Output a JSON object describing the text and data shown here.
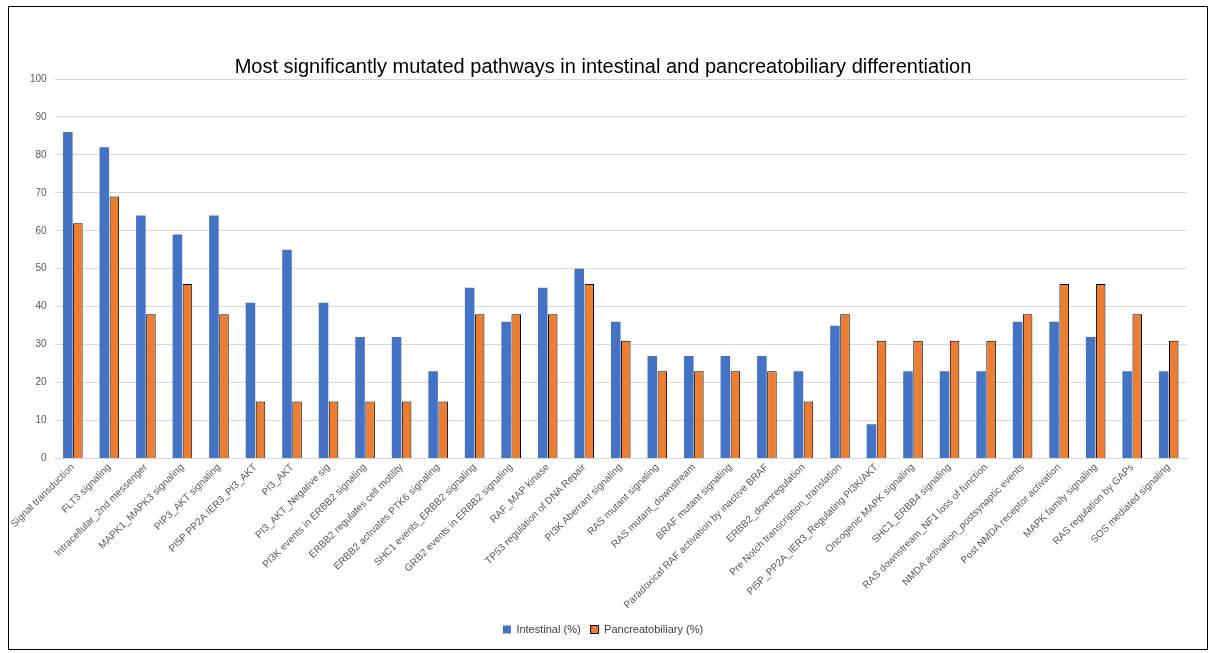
{
  "chart_data": {
    "type": "bar",
    "title": "Most significantly mutated pathways in intestinal and pancreatobiliary differentiation",
    "categories": [
      "Signal transduction",
      "FLT3 signaling",
      "Intracellular_2nd messenger",
      "MAPK1_MAPK3 signaling",
      "PIP3_AKT signaling",
      "PI5P PP2A IER3_PI3_AKT",
      "PI3_AKT",
      "PI3_AKT_Negative sig",
      "PI3K events in ERBB2 signaling",
      "ERBB2 regulates cell motility",
      "ERBB2 activates PTK6 signaling",
      "SHC1 events_ERBB2 signaling",
      "GRB2 events in ERBB2 signaling",
      "RAF_MAP kinase",
      "TP53 regulation of DNA Repair",
      "PI3K Aberrant signaling",
      "RAS mutant signaling",
      "RAS mutant_downstream",
      "BRAF mutant signaling",
      "Paradoxical RAF activation by inactive BRAF",
      "ERBB2_downregulation",
      "Pre Notch transcription_translation",
      "PI5P_PP2A_IER3_Regulating PI3K/AKT",
      "Oncogenic MAPK signaling",
      "SHC1_ERBB4 signaling",
      "RAS downstream_NF1 loss of function",
      "NMDA activation_postsynaptic events",
      "Post NMDA receptor activation",
      "MAPK family signaling",
      "RAS regulation by GAPs",
      "SOS mediated signaling"
    ],
    "series": [
      {
        "name": "Intestinal (%)",
        "color": "#4472c4",
        "values": [
          86,
          82,
          64,
          59,
          64,
          41,
          55,
          41,
          32,
          32,
          23,
          45,
          36,
          45,
          50,
          36,
          27,
          27,
          27,
          27,
          23,
          35,
          9,
          23,
          23,
          23,
          36,
          36,
          32,
          23,
          23
        ]
      },
      {
        "name": "Pancreatobiliary (%)",
        "color": "#ed7d31",
        "values": [
          62,
          69,
          38,
          46,
          38,
          15,
          15,
          15,
          15,
          15,
          15,
          38,
          38,
          38,
          46,
          31,
          23,
          23,
          23,
          23,
          15,
          38,
          31,
          31,
          31,
          31,
          38,
          46,
          46,
          38,
          31
        ]
      }
    ],
    "ylim": [
      0,
      100
    ],
    "yticks": [
      0,
      10,
      20,
      30,
      40,
      50,
      60,
      70,
      80,
      90,
      100
    ],
    "grid": "y",
    "legend": "bottom"
  }
}
